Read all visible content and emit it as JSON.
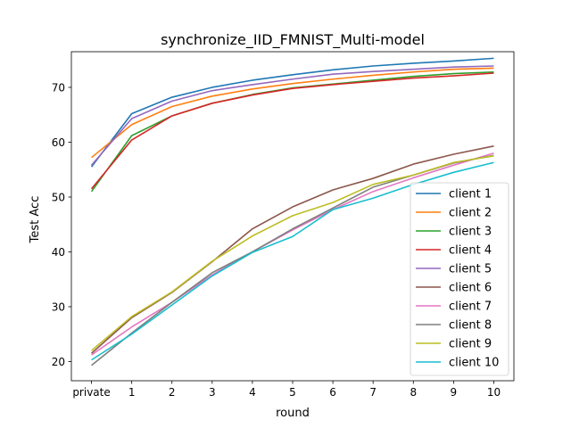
{
  "chart_data": {
    "type": "line",
    "title": "synchronize_IID_FMNIST_Multi-model",
    "xlabel": "round",
    "ylabel": "Test Acc",
    "categories": [
      "private",
      "1",
      "2",
      "3",
      "4",
      "5",
      "6",
      "7",
      "8",
      "9",
      "10"
    ],
    "ylim": [
      16.5,
      76.5
    ],
    "yticks": [
      20,
      30,
      40,
      50,
      60,
      70
    ],
    "grid": false,
    "legend": "lower-right",
    "series": [
      {
        "name": "client 1",
        "color": "#1f77b4",
        "values": [
          55.5,
          65.2,
          68.2,
          70.0,
          71.3,
          72.3,
          73.2,
          73.9,
          74.4,
          74.8,
          75.3
        ]
      },
      {
        "name": "client 2",
        "color": "#ff7f0e",
        "values": [
          57.2,
          63.2,
          66.5,
          68.4,
          69.7,
          70.7,
          71.5,
          72.2,
          72.8,
          73.3,
          73.5
        ]
      },
      {
        "name": "client 3",
        "color": "#2ca02c",
        "values": [
          51.0,
          61.2,
          64.8,
          67.1,
          68.7,
          69.9,
          70.6,
          71.3,
          72.0,
          72.5,
          72.8
        ]
      },
      {
        "name": "client 4",
        "color": "#d62728",
        "values": [
          51.5,
          60.4,
          64.8,
          67.1,
          68.6,
          69.8,
          70.5,
          71.1,
          71.7,
          72.1,
          72.6
        ]
      },
      {
        "name": "client 5",
        "color": "#9467bd",
        "values": [
          55.8,
          64.3,
          67.5,
          69.4,
          70.5,
          71.5,
          72.4,
          72.9,
          73.3,
          73.7,
          73.9
        ]
      },
      {
        "name": "client 6",
        "color": "#8c564b",
        "values": [
          21.5,
          28.0,
          32.6,
          38.2,
          44.2,
          48.2,
          51.3,
          53.4,
          56.0,
          57.8,
          59.3
        ]
      },
      {
        "name": "client 7",
        "color": "#e377c2",
        "values": [
          21.2,
          26.3,
          30.8,
          35.8,
          40.0,
          44.0,
          47.7,
          51.0,
          53.5,
          55.8,
          58.0
        ]
      },
      {
        "name": "client 8",
        "color": "#7f7f7f",
        "values": [
          19.3,
          25.2,
          30.8,
          36.2,
          40.0,
          44.2,
          48.0,
          51.8,
          54.0,
          56.2,
          57.6
        ]
      },
      {
        "name": "client 9",
        "color": "#bcbd22",
        "values": [
          22.0,
          28.2,
          32.7,
          38.3,
          42.9,
          46.6,
          49.0,
          52.3,
          54.0,
          56.3,
          57.5
        ]
      },
      {
        "name": "client 10",
        "color": "#17becf",
        "values": [
          20.3,
          25.0,
          30.3,
          35.6,
          39.9,
          42.8,
          47.7,
          49.8,
          52.3,
          54.5,
          56.3
        ]
      }
    ]
  }
}
